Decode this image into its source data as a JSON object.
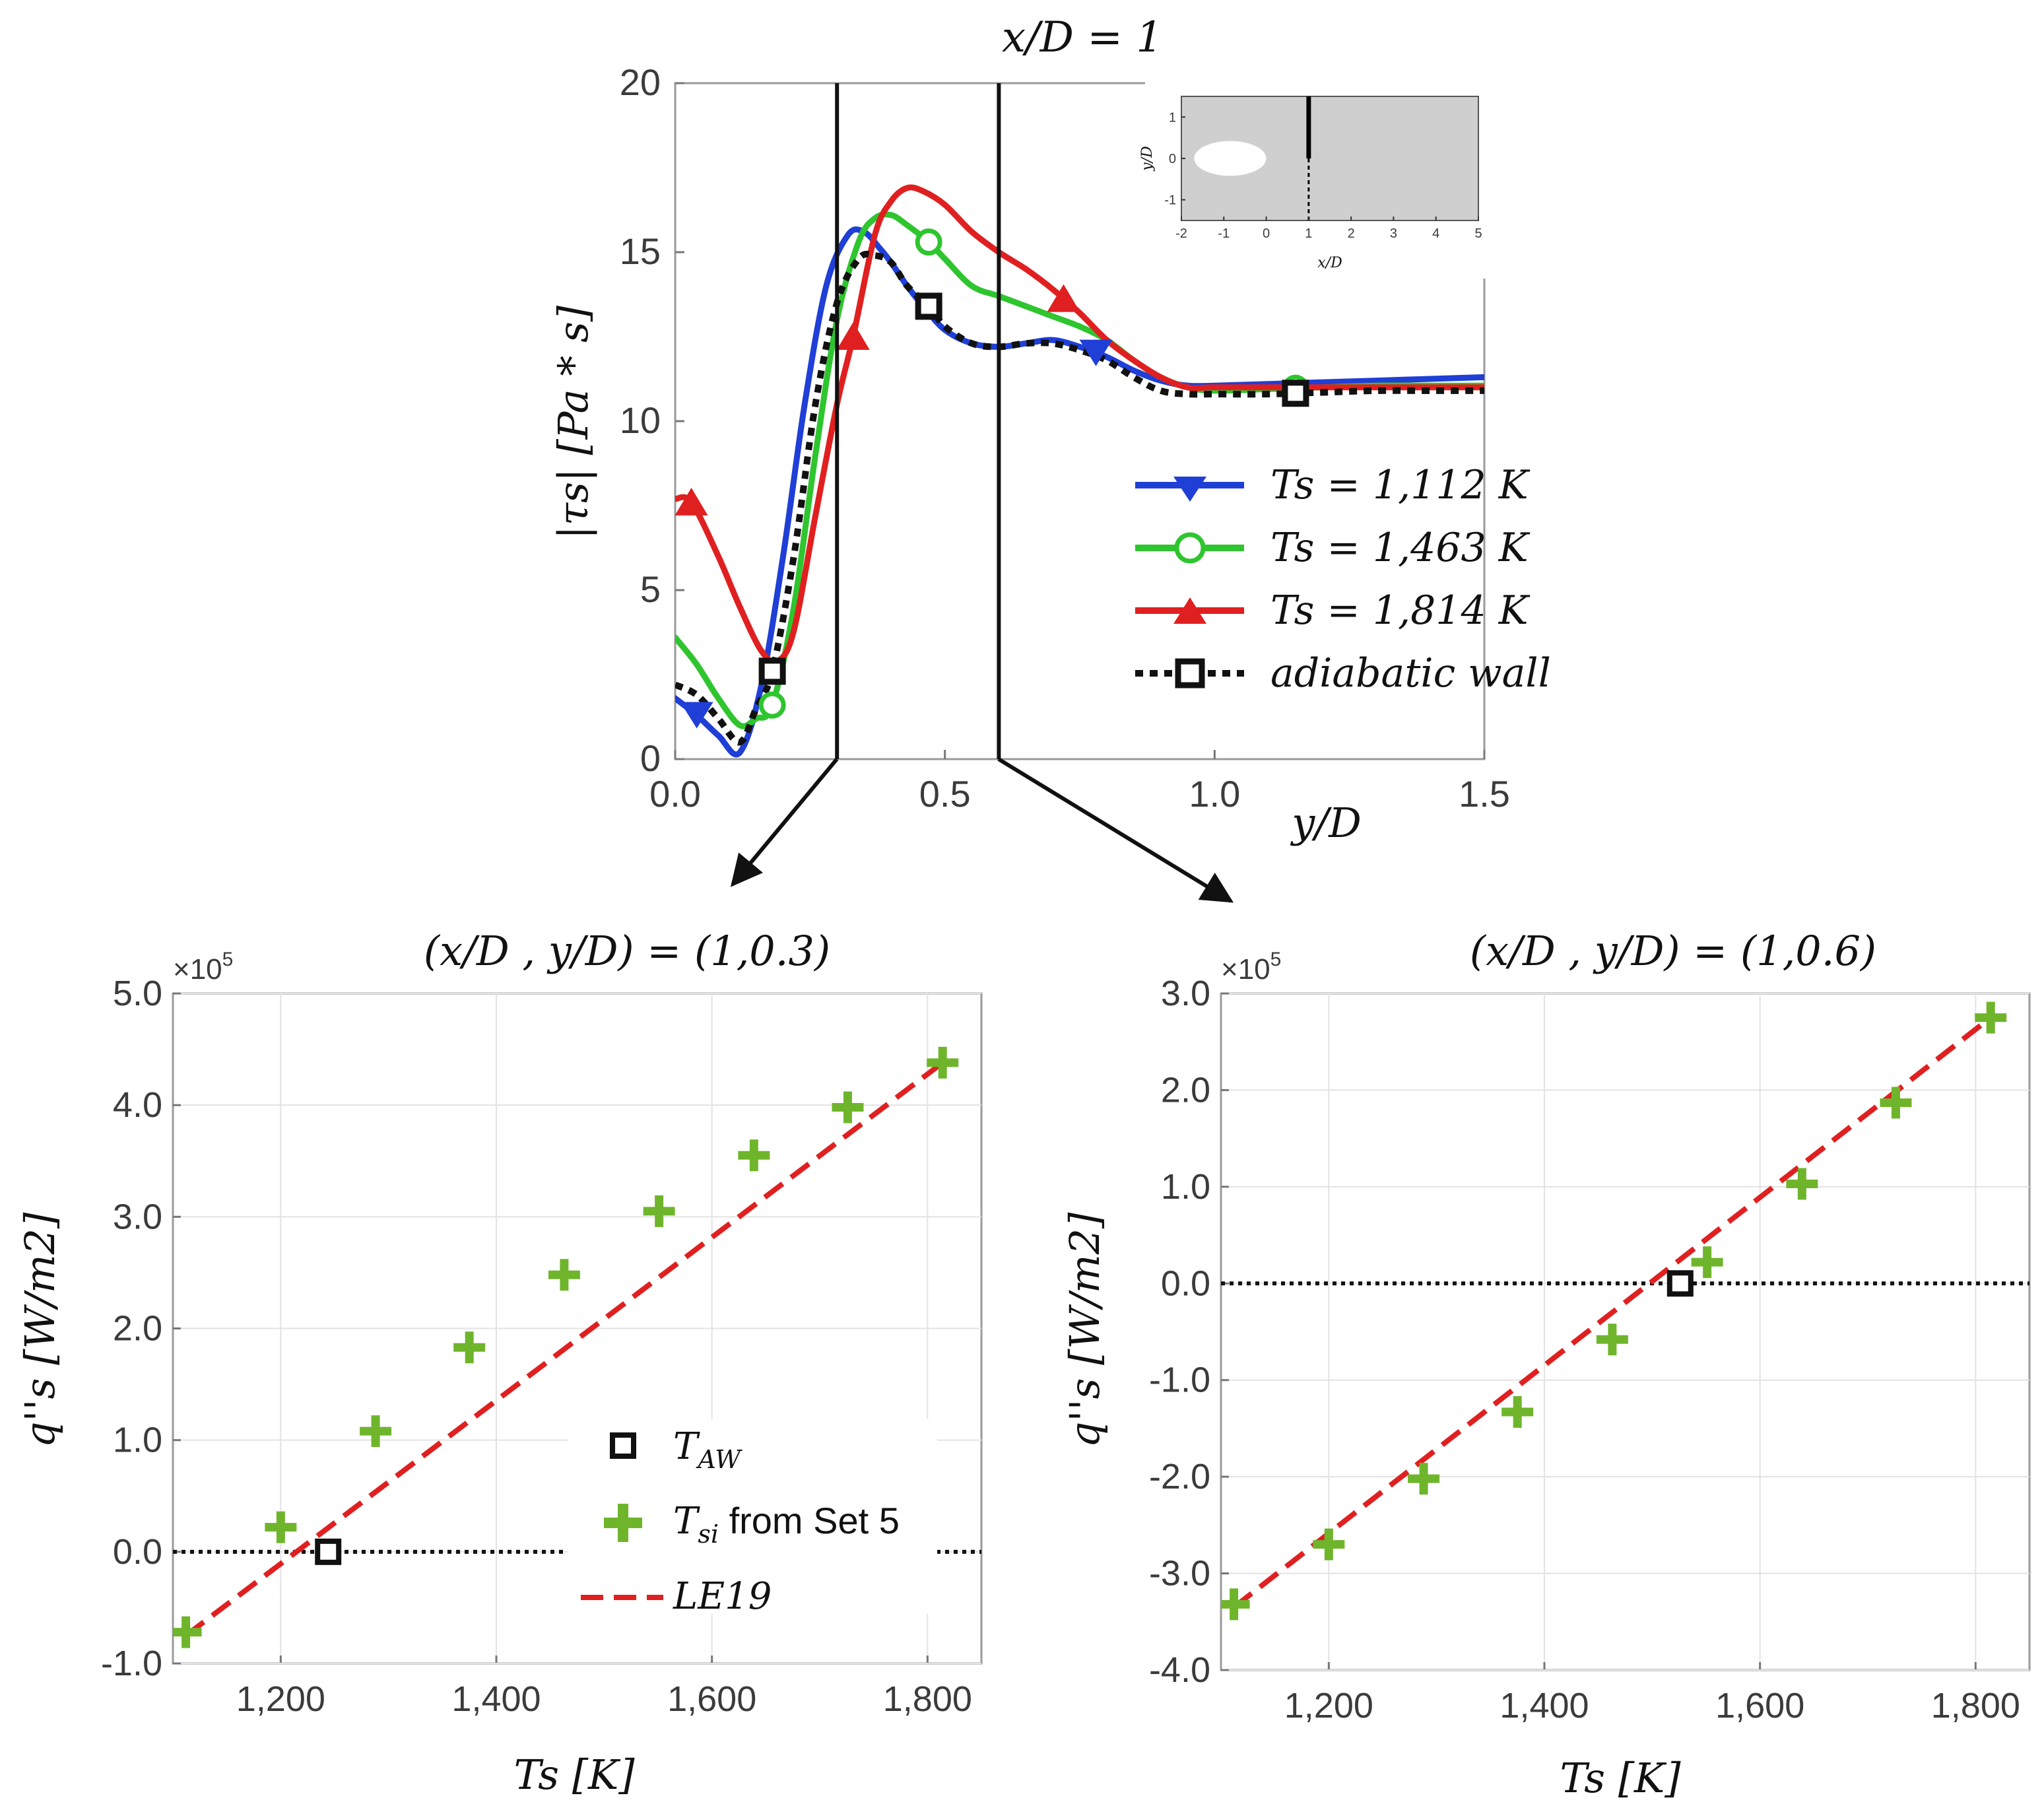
{
  "chart_data": [
    {
      "type": "line",
      "title": "x/D = 1",
      "xlabel": "y/D",
      "ylabel": "|τs| [Pa * s]",
      "xlim": [
        0,
        1.5
      ],
      "ylim": [
        0,
        20
      ],
      "xticks": [
        "0.0",
        "0.5",
        "1.0",
        "1.5"
      ],
      "yticks": [
        "0",
        "5",
        "10",
        "15",
        "20"
      ],
      "marked_locations_y_over_D": [
        0.3,
        0.6
      ],
      "legend": [
        "Ts = 1,112 K",
        "Ts = 1,463 K",
        "Ts = 1,814 K",
        "adiabatic wall"
      ],
      "series": [
        {
          "name": "Ts = 1,112 K",
          "color": "#1f3fd6",
          "marker": "triangle-down",
          "marker_x": [
            0.04,
            0.78
          ],
          "x": [
            0.0,
            0.04,
            0.08,
            0.12,
            0.16,
            0.2,
            0.24,
            0.28,
            0.32,
            0.35,
            0.38,
            0.4,
            0.43,
            0.46,
            0.5,
            0.55,
            0.6,
            0.65,
            0.7,
            0.75,
            0.8,
            0.85,
            0.9,
            0.95,
            1.0,
            1.1,
            1.2,
            1.3,
            1.4,
            1.5
          ],
          "y": [
            1.8,
            1.3,
            0.7,
            0.2,
            2.2,
            6.0,
            10.5,
            14.0,
            15.5,
            15.6,
            15.1,
            14.7,
            14.0,
            13.4,
            12.7,
            12.3,
            12.2,
            12.3,
            12.4,
            12.2,
            11.9,
            11.5,
            11.2,
            11.05,
            11.05,
            11.1,
            11.15,
            11.2,
            11.25,
            11.3
          ]
        },
        {
          "name": "Ts = 1,463 K",
          "color": "#2ec52e",
          "marker": "circle",
          "marker_x": [
            0.18,
            0.47,
            1.15
          ],
          "x": [
            0.0,
            0.04,
            0.08,
            0.12,
            0.15,
            0.18,
            0.22,
            0.26,
            0.3,
            0.34,
            0.37,
            0.4,
            0.43,
            0.47,
            0.5,
            0.55,
            0.6,
            0.65,
            0.7,
            0.75,
            0.8,
            0.85,
            0.9,
            0.95,
            1.0,
            1.1,
            1.2,
            1.3,
            1.4,
            1.5
          ],
          "y": [
            3.6,
            2.8,
            1.8,
            1.0,
            1.2,
            1.6,
            4.5,
            9.0,
            13.0,
            15.3,
            16.0,
            16.1,
            15.8,
            15.3,
            14.8,
            14.0,
            13.7,
            13.4,
            13.1,
            12.8,
            12.4,
            11.8,
            11.3,
            11.0,
            10.9,
            10.95,
            11.0,
            11.05,
            11.05,
            11.05
          ]
        },
        {
          "name": "Ts = 1,814 K",
          "color": "#e02020",
          "marker": "triangle-up",
          "marker_x": [
            0.03,
            0.33,
            0.72
          ],
          "x": [
            0.0,
            0.03,
            0.08,
            0.12,
            0.16,
            0.19,
            0.22,
            0.26,
            0.3,
            0.33,
            0.37,
            0.4,
            0.43,
            0.46,
            0.5,
            0.55,
            0.6,
            0.65,
            0.7,
            0.75,
            0.8,
            0.85,
            0.9,
            0.95,
            1.0,
            1.1,
            1.2,
            1.3,
            1.4,
            1.5
          ],
          "y": [
            7.7,
            7.6,
            6.0,
            4.5,
            3.2,
            2.9,
            3.8,
            7.2,
            10.5,
            12.5,
            15.5,
            16.5,
            16.9,
            16.8,
            16.4,
            15.6,
            15.0,
            14.5,
            13.9,
            13.2,
            12.4,
            11.8,
            11.3,
            11.0,
            11.0,
            11.0,
            11.0,
            11.0,
            11.0,
            11.0
          ]
        },
        {
          "name": "adiabatic wall",
          "color": "#111111",
          "marker": "square",
          "marker_x": [
            0.18,
            0.47,
            1.15
          ],
          "x": [
            0.0,
            0.04,
            0.08,
            0.12,
            0.15,
            0.18,
            0.22,
            0.26,
            0.3,
            0.34,
            0.37,
            0.4,
            0.43,
            0.47,
            0.5,
            0.55,
            0.6,
            0.65,
            0.7,
            0.75,
            0.8,
            0.85,
            0.9,
            0.95,
            1.0,
            1.1,
            1.2,
            1.3,
            1.4,
            1.5
          ],
          "y": [
            2.2,
            1.9,
            1.2,
            0.5,
            1.5,
            2.6,
            6.0,
            10.5,
            13.5,
            14.8,
            14.9,
            14.7,
            14.0,
            13.4,
            12.8,
            12.3,
            12.2,
            12.3,
            12.3,
            12.1,
            11.8,
            11.3,
            10.9,
            10.8,
            10.8,
            10.8,
            10.85,
            10.9,
            10.9,
            10.9
          ]
        }
      ],
      "inset": {
        "xlabel": "x/D",
        "ylabel": "y/D",
        "xticks": [
          "-2",
          "-1",
          "0",
          "1",
          "2",
          "3",
          "4",
          "5"
        ],
        "yticks": [
          "1",
          "0",
          "-1"
        ],
        "xlim": [
          -2,
          5
        ],
        "ylim": [
          -1.5,
          1.5
        ],
        "hole_center": [
          -0.85,
          0
        ],
        "hole_radii": [
          0.85,
          0.42
        ],
        "cut_x": 1,
        "cut_solid_y": [
          0,
          1.5
        ],
        "cut_dashed_y": [
          -1.5,
          0
        ],
        "background": "#cfcfcf"
      }
    },
    {
      "type": "scatter",
      "title": "(x/D , y/D) = (1,0.3)",
      "xlabel": "Ts [K]",
      "ylabel": "q''s [W/m2]",
      "exponent_label": "×10",
      "exponent_power": "5",
      "xlim": [
        1100,
        1850
      ],
      "ylim": [
        -1.0,
        5.0
      ],
      "xticks": [
        1200,
        1400,
        1600,
        1800
      ],
      "xtick_labels": [
        "1,200",
        "1,400",
        "1,600",
        "1,800"
      ],
      "yticks": [
        -1.0,
        0.0,
        1.0,
        2.0,
        3.0,
        4.0,
        5.0
      ],
      "ytick_labels": [
        "-1.0",
        "0.0",
        "1.0",
        "2.0",
        "3.0",
        "4.0",
        "5.0"
      ],
      "T_AW": [
        1244,
        0.0
      ],
      "Tsi_points": {
        "x": [
          1112,
          1200,
          1288,
          1375,
          1463,
          1551,
          1639,
          1726,
          1814
        ],
        "y": [
          -0.72,
          0.22,
          1.08,
          1.83,
          2.48,
          3.05,
          3.55,
          3.98,
          4.38
        ]
      },
      "LE19_line": {
        "x": [
          1112,
          1814
        ],
        "y": [
          -0.75,
          4.38
        ]
      },
      "legend": [
        {
          "label_main": "T",
          "label_sub": "AW"
        },
        {
          "label_main": "T",
          "label_sub": "si",
          "label_rest": " from Set 5"
        },
        {
          "label_main": "LE19"
        }
      ]
    },
    {
      "type": "scatter",
      "title": "(x/D , y/D) = (1,0.6)",
      "xlabel": "Ts [K]",
      "ylabel": "q''s [W/m2]",
      "exponent_label": "×10",
      "exponent_power": "5",
      "xlim": [
        1100,
        1850
      ],
      "ylim": [
        -4.0,
        3.0
      ],
      "xticks": [
        1200,
        1400,
        1600,
        1800
      ],
      "xtick_labels": [
        "1,200",
        "1,400",
        "1,600",
        "1,800"
      ],
      "yticks": [
        -4.0,
        -3.0,
        -2.0,
        -1.0,
        0.0,
        1.0,
        2.0,
        3.0
      ],
      "ytick_labels": [
        "-4.0",
        "-3.0",
        "-2.0",
        "-1.0",
        "0.0",
        "1.0",
        "2.0",
        "3.0"
      ],
      "T_AW": [
        1526,
        0.0
      ],
      "Tsi_points": {
        "x": [
          1112,
          1200,
          1288,
          1375,
          1463,
          1551,
          1639,
          1726,
          1814
        ],
        "y": [
          -3.32,
          -2.7,
          -2.02,
          -1.33,
          -0.58,
          0.22,
          1.03,
          1.87,
          2.75
        ]
      },
      "LE19_line": {
        "x": [
          1112,
          1814
        ],
        "y": [
          -3.35,
          2.75
        ]
      }
    }
  ],
  "colors": {
    "blue": "#1f3fd6",
    "green": "#2ec52e",
    "red": "#e02020",
    "black": "#111111",
    "marker_green": "#6fb52c",
    "dashed_red": "#e02020",
    "grid": "#e3e3e3"
  }
}
